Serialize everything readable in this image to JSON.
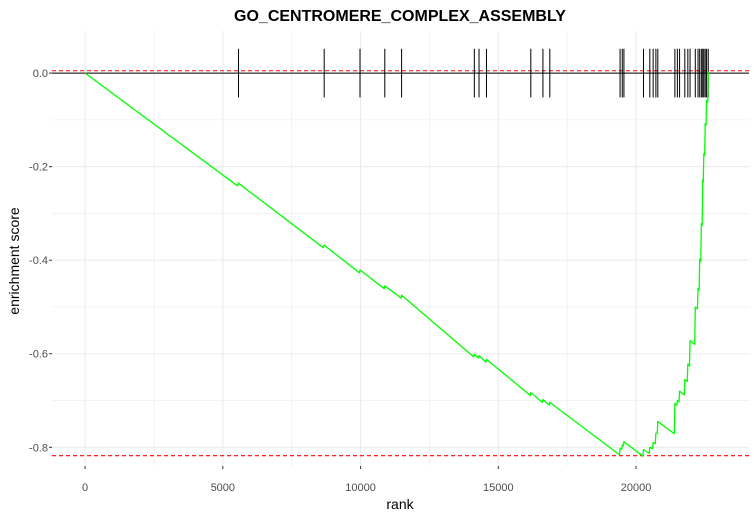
{
  "chart_data": {
    "type": "line",
    "title": "GO_CENTROMERE_COMPLEX_ASSEMBLY",
    "xlabel": "rank",
    "ylabel": "enrichment score",
    "xlim": [
      -1200,
      24100
    ],
    "ylim": [
      -0.84,
      0.09
    ],
    "x_ticks": [
      0,
      5000,
      10000,
      15000,
      20000
    ],
    "y_ticks": [
      0.0,
      -0.2,
      -0.4,
      -0.6,
      -0.8
    ],
    "x_tick_labels": [
      "0",
      "5000",
      "10000",
      "15000",
      "20000"
    ],
    "y_tick_labels": [
      "0.0",
      "-0.2",
      "-0.4",
      "-0.6",
      "-0.8"
    ],
    "grid": true,
    "colors": {
      "curve": "#00ff00",
      "hit_ticks": "#000000",
      "reference_lines": "#ff0000",
      "zero_line": "#000000",
      "grid": "#ebebeb"
    },
    "reference_lines": [
      0.005,
      -0.818
    ],
    "hit_ranks": [
      5570,
      8680,
      9980,
      10880,
      11490,
      14130,
      14300,
      14570,
      16180,
      16620,
      16870,
      19420,
      19500,
      19560,
      20270,
      20500,
      20620,
      20720,
      20790,
      21410,
      21500,
      21580,
      21770,
      21880,
      21960,
      22150,
      22250,
      22310,
      22370,
      22420,
      22460,
      22510,
      22560,
      22620
    ],
    "series": [
      {
        "x": [
          0,
          5530,
          5570,
          5600,
          8640,
          8680,
          9960,
          9980,
          10860,
          10880,
          11480,
          11490,
          14110,
          14130,
          14280,
          14300,
          14550,
          14570,
          16160,
          16180,
          16600,
          16620,
          16850,
          16870,
          19400,
          19420,
          19480,
          19500,
          19540,
          19560,
          20250,
          20270,
          20480,
          20500,
          20600,
          20620,
          20700,
          20720,
          20770,
          20790,
          21390,
          21410,
          21480,
          21500,
          21560,
          21580,
          21750,
          21770,
          21860,
          21880,
          21940,
          21960,
          22130,
          22150,
          22230,
          22250,
          22290,
          22310,
          22350,
          22370,
          22400,
          22420,
          22440,
          22460,
          22490,
          22510,
          22540,
          22560,
          22600,
          22620
        ],
        "y": [
          0.0,
          -0.241,
          -0.235,
          -0.237,
          -0.373,
          -0.368,
          -0.427,
          -0.421,
          -0.461,
          -0.455,
          -0.481,
          -0.475,
          -0.607,
          -0.601,
          -0.609,
          -0.604,
          -0.618,
          -0.612,
          -0.689,
          -0.683,
          -0.704,
          -0.698,
          -0.71,
          -0.704,
          -0.816,
          -0.802,
          -0.804,
          -0.795,
          -0.797,
          -0.788,
          -0.819,
          -0.805,
          -0.813,
          -0.8,
          -0.803,
          -0.79,
          -0.792,
          -0.77,
          -0.77,
          -0.745,
          -0.771,
          -0.706,
          -0.71,
          -0.7,
          -0.703,
          -0.68,
          -0.688,
          -0.655,
          -0.659,
          -0.622,
          -0.626,
          -0.572,
          -0.58,
          -0.5,
          -0.504,
          -0.46,
          -0.464,
          -0.398,
          -0.402,
          -0.322,
          -0.326,
          -0.228,
          -0.232,
          -0.172,
          -0.176,
          -0.108,
          -0.112,
          -0.058,
          -0.062,
          0.003
        ]
      }
    ]
  }
}
